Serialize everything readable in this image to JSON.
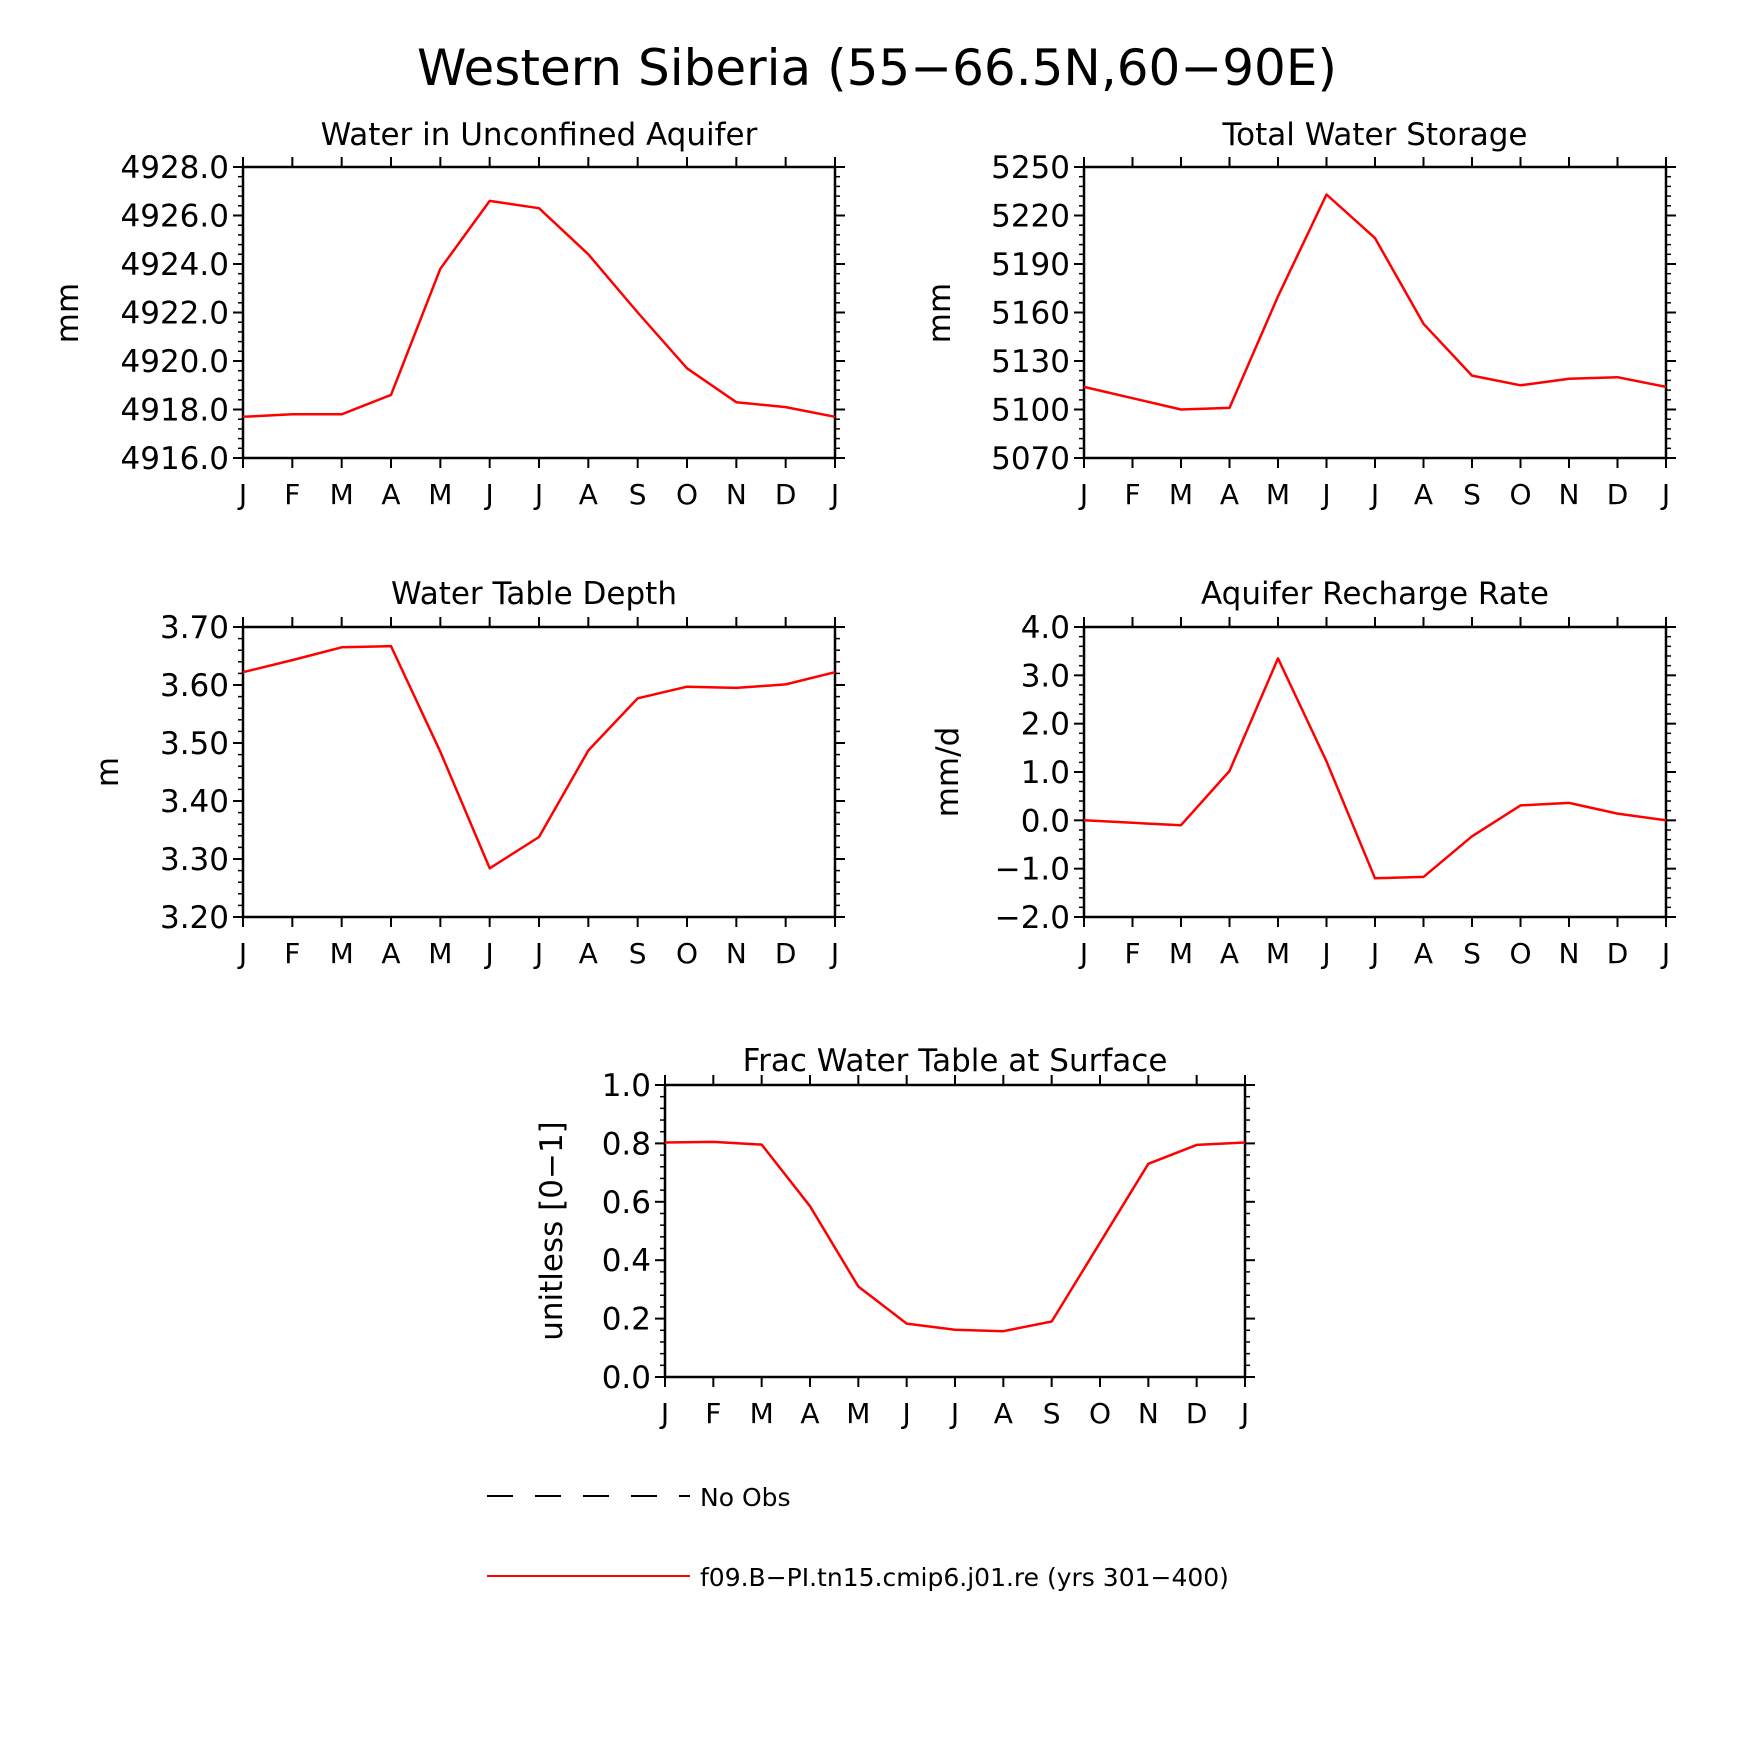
{
  "figure_title": "Western Siberia (55−66.5N,60−90E)",
  "legend": {
    "entries": [
      {
        "label": "No Obs",
        "style": "dashed",
        "color": "#000000"
      },
      {
        "label": "f09.B−PI.tn15.cmip6.j01.re (yrs 301−400)",
        "style": "solid",
        "color": "#ff0000"
      }
    ]
  },
  "colors": {
    "model": "#ff0000",
    "axis": "#000000"
  },
  "chart_data": [
    {
      "type": "line",
      "title": "Water in Unconfined Aquifer",
      "ylabel": "mm",
      "xlabel": "",
      "categories": [
        "J",
        "F",
        "M",
        "A",
        "M",
        "J",
        "J",
        "A",
        "S",
        "O",
        "N",
        "D",
        "J"
      ],
      "yticks": [
        "4916.0",
        "4918.0",
        "4920.0",
        "4922.0",
        "4924.0",
        "4926.0",
        "4928.0"
      ],
      "ylim": [
        4916,
        4928
      ],
      "series": [
        {
          "values": [
            4917.7,
            4917.8,
            4917.8,
            4918.6,
            4923.8,
            4926.6,
            4926.3,
            4924.4,
            4922.0,
            4919.7,
            4918.3,
            4918.1,
            4917.7
          ]
        }
      ]
    },
    {
      "type": "line",
      "title": "Total Water Storage",
      "ylabel": "mm",
      "xlabel": "",
      "categories": [
        "J",
        "F",
        "M",
        "A",
        "M",
        "J",
        "J",
        "A",
        "S",
        "O",
        "N",
        "D",
        "J"
      ],
      "yticks": [
        "5070",
        "5100",
        "5130",
        "5160",
        "5190",
        "5220",
        "5250"
      ],
      "ylim": [
        5070,
        5250
      ],
      "series": [
        {
          "values": [
            5114,
            5107,
            5100,
            5101,
            5170,
            5233,
            5206,
            5153,
            5121,
            5115,
            5119,
            5120,
            5114
          ]
        }
      ]
    },
    {
      "type": "line",
      "title": "Water Table Depth",
      "ylabel": "m",
      "xlabel": "",
      "categories": [
        "J",
        "F",
        "M",
        "A",
        "M",
        "J",
        "J",
        "A",
        "S",
        "O",
        "N",
        "D",
        "J"
      ],
      "yticks": [
        "3.20",
        "3.30",
        "3.40",
        "3.50",
        "3.60",
        "3.70"
      ],
      "ylim": [
        3.2,
        3.7
      ],
      "series": [
        {
          "values": [
            3.622,
            3.643,
            3.665,
            3.667,
            3.485,
            3.284,
            3.338,
            3.487,
            3.577,
            3.597,
            3.595,
            3.601,
            3.622
          ]
        }
      ]
    },
    {
      "type": "line",
      "title": "Aquifer Recharge Rate",
      "ylabel": "mm/d",
      "xlabel": "",
      "categories": [
        "J",
        "F",
        "M",
        "A",
        "M",
        "J",
        "J",
        "A",
        "S",
        "O",
        "N",
        "D",
        "J"
      ],
      "yticks": [
        "−2.0",
        "−1.0",
        "0.0",
        "1.0",
        "2.0",
        "3.0",
        "4.0"
      ],
      "ylim": [
        -2.0,
        4.0
      ],
      "series": [
        {
          "values": [
            0.0,
            -0.05,
            -0.1,
            1.02,
            3.35,
            1.22,
            -1.2,
            -1.17,
            -0.33,
            0.31,
            0.36,
            0.14,
            0.0
          ]
        }
      ]
    },
    {
      "type": "line",
      "title": "Frac Water Table at Surface",
      "ylabel": "unitless [0−1]",
      "xlabel": "",
      "categories": [
        "J",
        "F",
        "M",
        "A",
        "M",
        "J",
        "J",
        "A",
        "S",
        "O",
        "N",
        "D",
        "J"
      ],
      "yticks": [
        "0.0",
        "0.2",
        "0.4",
        "0.6",
        "0.8",
        "1.0"
      ],
      "ylim": [
        0.0,
        1.0
      ],
      "series": [
        {
          "values": [
            0.803,
            0.805,
            0.796,
            0.585,
            0.31,
            0.183,
            0.162,
            0.157,
            0.19,
            0.46,
            0.73,
            0.795,
            0.803
          ]
        }
      ]
    }
  ]
}
